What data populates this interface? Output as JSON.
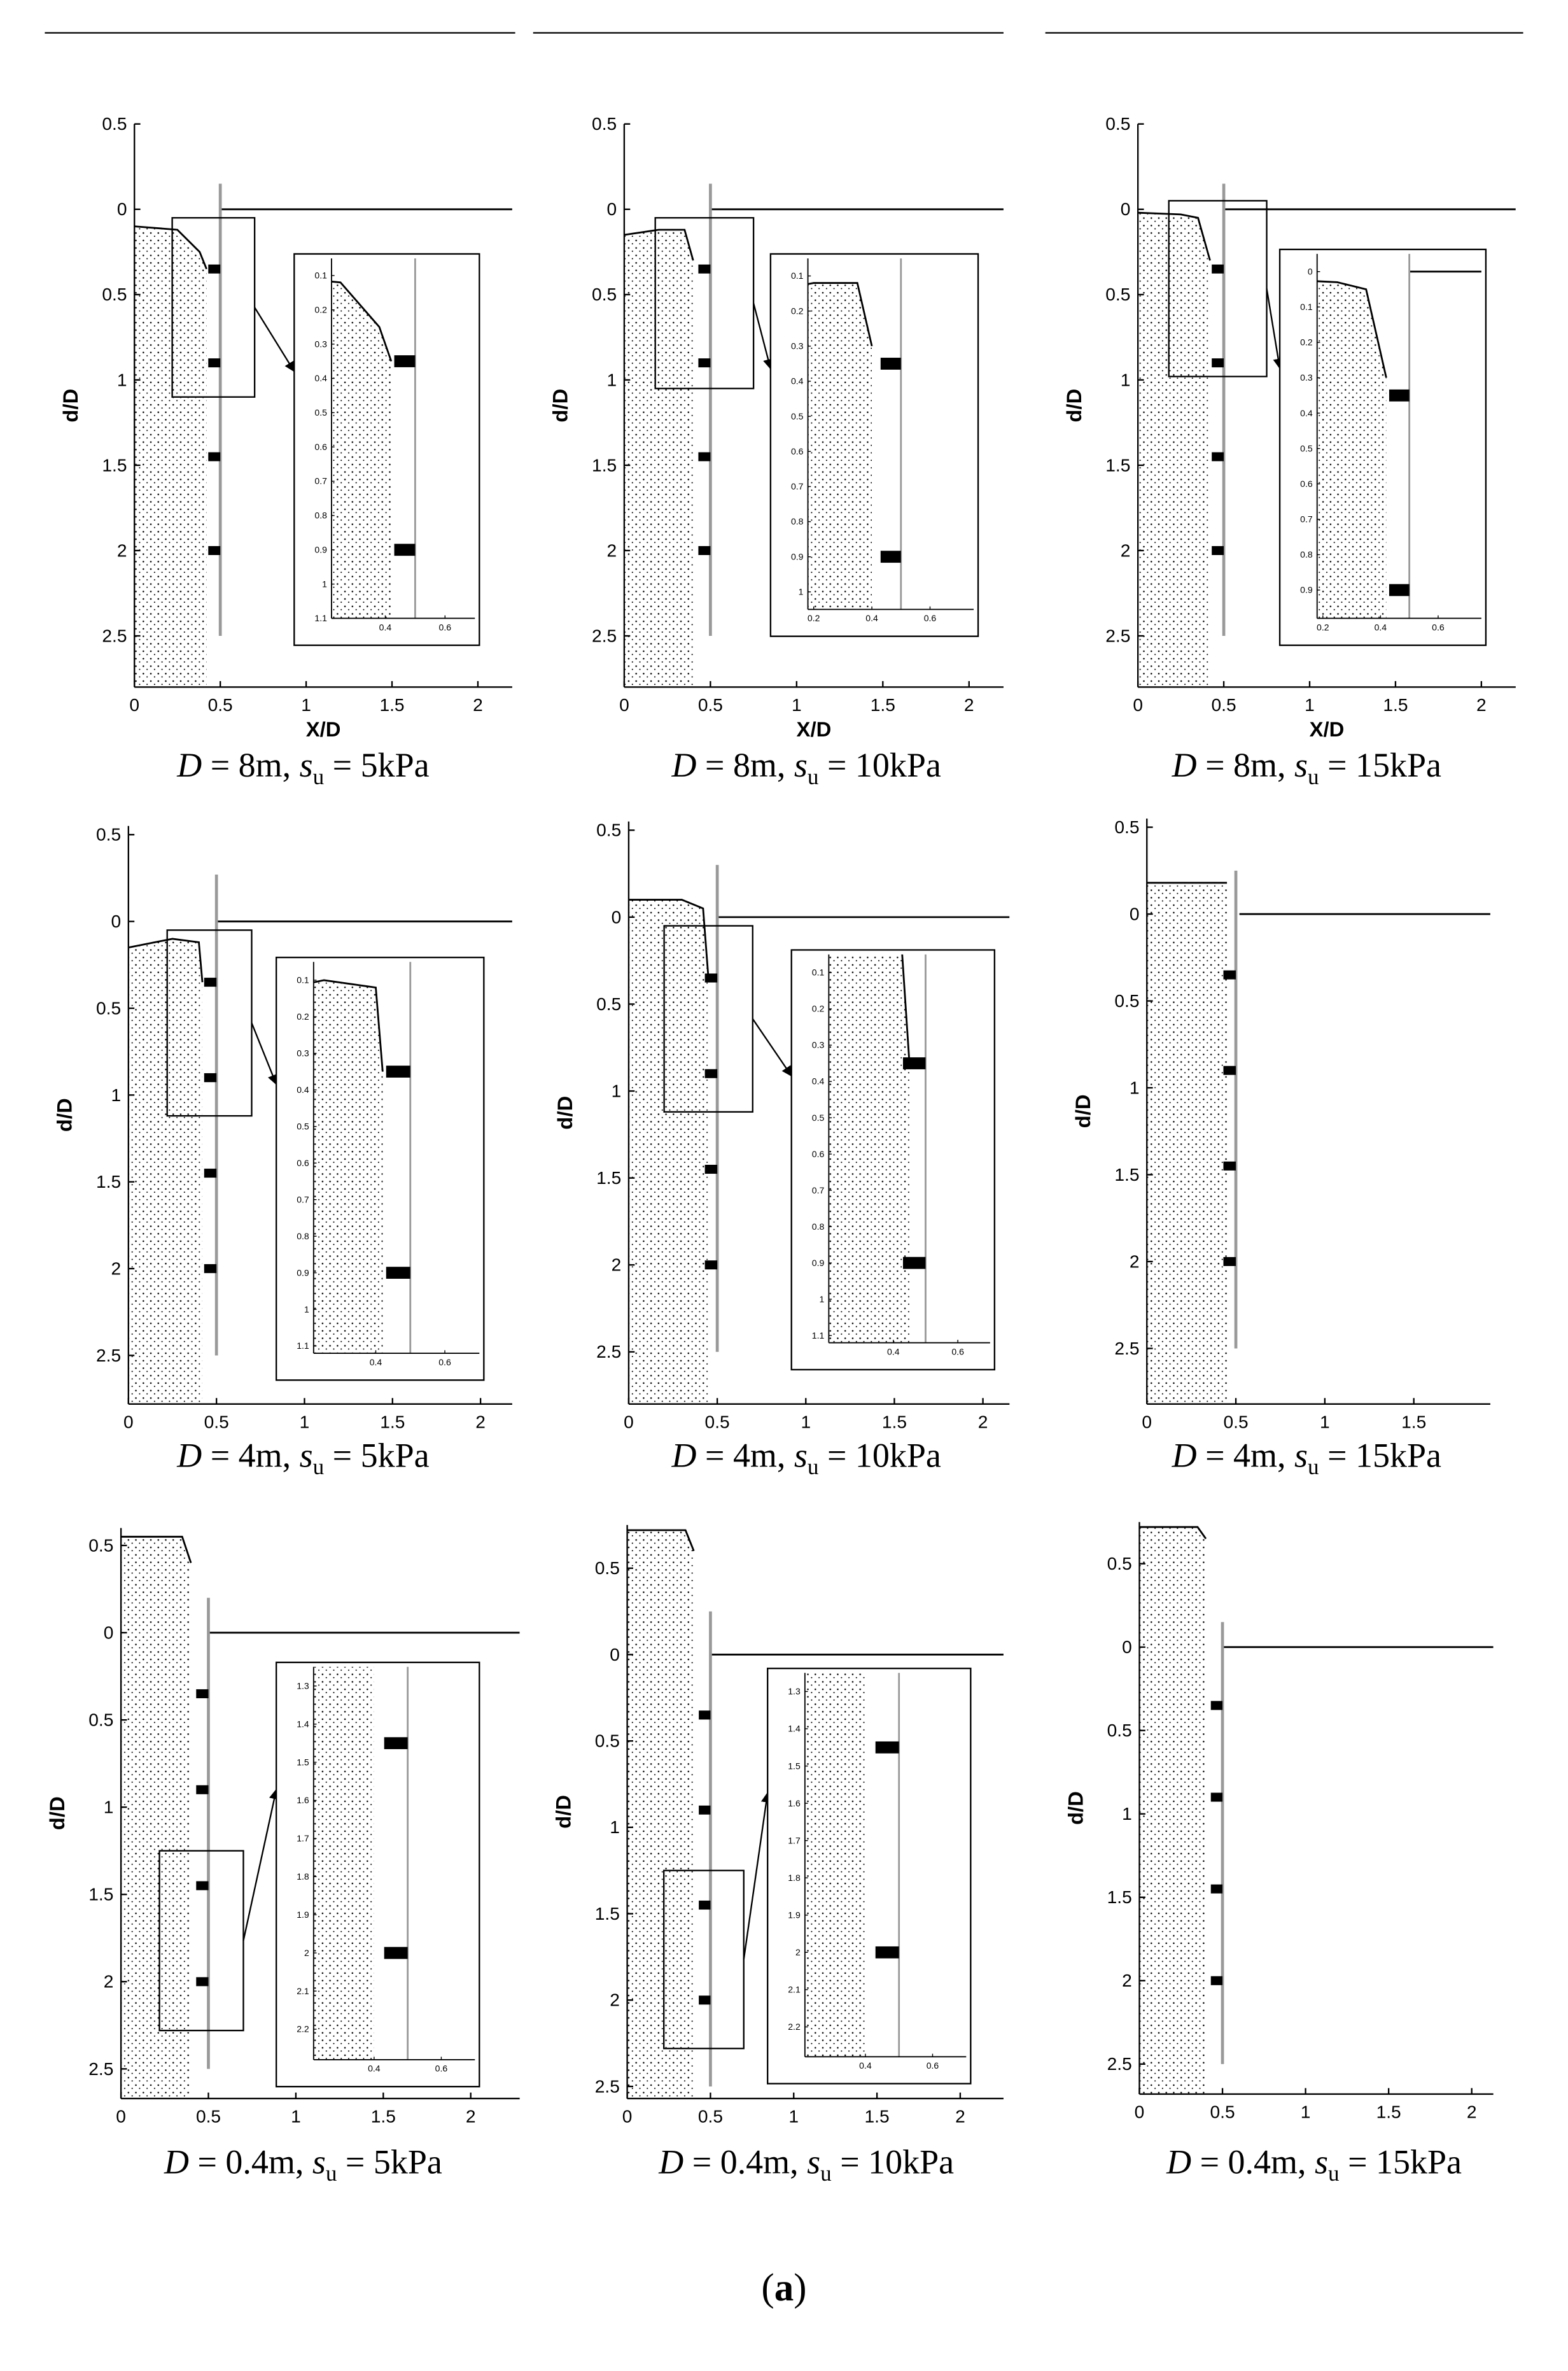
{
  "chart_data": [
    {
      "type": "line",
      "caption": [
        "D",
        " = 8m, ",
        "s",
        "u",
        " = 5kPa"
      ],
      "xlabel": "X/D",
      "ylabel": "d/D",
      "xlim": [
        0,
        2.2
      ],
      "ylim": [
        -0.5,
        2.8
      ],
      "xticks": [
        0,
        0.5,
        1,
        1.5,
        2
      ],
      "yticks": [
        {
          "value": -0.5,
          "label": "0.5"
        },
        0,
        0.5,
        1,
        1.5,
        2,
        2.5
      ],
      "series": [
        {
          "color": "#000000",
          "area": true,
          "x": [
            0,
            0.25,
            0.38,
            0.42
          ],
          "values": [
            0.1,
            0.12,
            0.25,
            0.35
          ]
        },
        {
          "color": "#000000",
          "x": [
            0.5,
            2.2
          ],
          "values": [
            0,
            0
          ]
        },
        {
          "color": "#999999",
          "x": [
            0.5,
            0.5
          ],
          "values": [
            -0.15,
            2.5
          ]
        }
      ],
      "anchors": {
        "color": "#000000",
        "values": [
          0.35,
          0.9,
          1.45,
          2.0
        ]
      },
      "inset": {
        "xlim": [
          0.22,
          0.7
        ],
        "ylim": [
          0.05,
          1.1
        ],
        "xticks": [
          0.4,
          0.6
        ],
        "yticks": [
          0.1,
          0.2,
          0.3,
          0.4,
          0.5,
          0.6,
          0.7,
          0.8,
          0.9,
          1,
          1.1
        ]
      }
    },
    {
      "type": "line",
      "caption": [
        "D",
        " = 8m, ",
        "s",
        "u",
        " = 10kPa"
      ],
      "xlabel": "X/D",
      "ylabel": "d/D",
      "xlim": [
        0,
        2.2
      ],
      "ylim": [
        -0.5,
        2.8
      ],
      "xticks": [
        0,
        0.5,
        1,
        1.5,
        2
      ],
      "yticks": [
        {
          "value": -0.5,
          "label": "0.5"
        },
        0,
        0.5,
        1,
        1.5,
        2,
        2.5
      ],
      "series": [
        {
          "color": "#000000",
          "area": true,
          "x": [
            0,
            0.2,
            0.35,
            0.4
          ],
          "values": [
            0.15,
            0.12,
            0.12,
            0.3
          ]
        },
        {
          "color": "#000000",
          "x": [
            0.5,
            2.2
          ],
          "values": [
            0,
            0
          ]
        },
        {
          "color": "#999999",
          "x": [
            0.5,
            0.5
          ],
          "values": [
            -0.15,
            2.5
          ]
        }
      ],
      "anchors": {
        "color": "#000000",
        "values": [
          0.35,
          0.9,
          1.45,
          2.0
        ]
      },
      "inset": {
        "xlim": [
          0.18,
          0.75
        ],
        "ylim": [
          0.05,
          1.05
        ],
        "xticks": [
          0.2,
          0.4,
          0.6
        ],
        "yticks": [
          0.1,
          0.2,
          0.3,
          0.4,
          0.5,
          0.6,
          0.7,
          0.8,
          0.9,
          1
        ]
      }
    },
    {
      "type": "line",
      "caption": [
        "D",
        " = 8m, ",
        "s",
        "u",
        " = 15kPa"
      ],
      "xlabel": "X/D",
      "ylabel": "d/D",
      "xlim": [
        0,
        2.2
      ],
      "ylim": [
        -0.5,
        2.8
      ],
      "xticks": [
        0,
        0.5,
        1,
        1.5,
        2
      ],
      "yticks": [
        {
          "value": -0.5,
          "label": "0.5"
        },
        0,
        0.5,
        1,
        1.5,
        2,
        2.5
      ],
      "series": [
        {
          "color": "#000000",
          "area": true,
          "x": [
            0,
            0.25,
            0.35,
            0.42
          ],
          "values": [
            0.02,
            0.03,
            0.05,
            0.3
          ]
        },
        {
          "color": "#000000",
          "x": [
            0.5,
            2.2
          ],
          "values": [
            0,
            0
          ]
        },
        {
          "color": "#999999",
          "x": [
            0.5,
            0.5
          ],
          "values": [
            -0.15,
            2.5
          ]
        }
      ],
      "anchors": {
        "color": "#000000",
        "values": [
          0.35,
          0.9,
          1.45,
          2.0
        ]
      },
      "inset": {
        "xlim": [
          0.18,
          0.75
        ],
        "ylim": [
          -0.05,
          0.98
        ],
        "xticks": [
          0.2,
          0.4,
          0.6
        ],
        "yticks": [
          0,
          0.1,
          0.2,
          0.3,
          0.4,
          0.5,
          0.6,
          0.7,
          0.8,
          0.9
        ]
      }
    },
    {
      "type": "line",
      "caption": [
        "D",
        " = 4m, ",
        "s",
        "u",
        " = 5kPa"
      ],
      "ylabel": "d/D",
      "xlim": [
        0,
        2.18
      ],
      "ylim": [
        -0.55,
        2.78
      ],
      "xticks": [
        0,
        0.5,
        1,
        1.5,
        2
      ],
      "yticks": [
        {
          "value": -0.5,
          "label": "0.5"
        },
        0,
        0.5,
        1,
        1.5,
        2,
        2.5
      ],
      "series": [
        {
          "color": "#000000",
          "area": true,
          "x": [
            0,
            0.25,
            0.4,
            0.42
          ],
          "values": [
            0.15,
            0.1,
            0.12,
            0.35
          ]
        },
        {
          "color": "#000000",
          "x": [
            0.5,
            2.18
          ],
          "values": [
            0,
            0
          ]
        },
        {
          "color": "#999999",
          "x": [
            0.5,
            0.5
          ],
          "values": [
            -0.27,
            2.5
          ]
        }
      ],
      "anchors": {
        "color": "#000000",
        "values": [
          0.35,
          0.9,
          1.45,
          2.0
        ]
      },
      "inset": {
        "xlim": [
          0.22,
          0.7
        ],
        "ylim": [
          0.05,
          1.12
        ],
        "xticks": [
          0.4,
          0.6
        ],
        "yticks": [
          0.1,
          0.2,
          0.3,
          0.4,
          0.5,
          0.6,
          0.7,
          0.8,
          0.9,
          1,
          1.1
        ]
      }
    },
    {
      "type": "line",
      "caption": [
        "D",
        " = 4m, ",
        "s",
        "u",
        " = 10kPa"
      ],
      "ylabel": "d/D",
      "xlim": [
        0,
        2.15
      ],
      "ylim": [
        -0.55,
        2.8
      ],
      "xticks": [
        0,
        0.5,
        1,
        1.5,
        2
      ],
      "yticks": [
        {
          "value": -0.5,
          "label": "0.5"
        },
        0,
        0.5,
        1,
        1.5,
        2,
        2.5
      ],
      "series": [
        {
          "color": "#000000",
          "area": true,
          "x": [
            0,
            0.3,
            0.42,
            0.45
          ],
          "values": [
            -0.1,
            -0.1,
            -0.05,
            0.35
          ]
        },
        {
          "color": "#000000",
          "x": [
            0.5,
            2.15
          ],
          "values": [
            0,
            0
          ]
        },
        {
          "color": "#999999",
          "x": [
            0.5,
            0.5
          ],
          "values": [
            -0.3,
            2.5
          ]
        }
      ],
      "anchors": {
        "color": "#000000",
        "values": [
          0.35,
          0.9,
          1.45,
          2.0
        ]
      },
      "inset": {
        "xlim": [
          0.2,
          0.7
        ],
        "ylim": [
          0.05,
          1.12
        ],
        "xticks": [
          0.4,
          0.6
        ],
        "yticks": [
          0.1,
          0.2,
          0.3,
          0.4,
          0.5,
          0.6,
          0.7,
          0.8,
          0.9,
          1,
          1.1
        ]
      }
    },
    {
      "type": "line",
      "caption": [
        "D",
        " = 4m, ",
        "s",
        "u",
        " = 15kPa"
      ],
      "ylabel": "d/D",
      "xlim": [
        0,
        1.93
      ],
      "ylim": [
        -0.55,
        2.82
      ],
      "xticks": [
        0,
        0.5,
        1,
        1.5
      ],
      "yticks": [
        {
          "value": -0.5,
          "label": "0.5"
        },
        0,
        0.5,
        1,
        1.5,
        2,
        2.5
      ],
      "series": [
        {
          "color": "#000000",
          "area": true,
          "x": [
            0,
            0.45
          ],
          "values": [
            -0.18,
            -0.18
          ]
        },
        {
          "color": "#000000",
          "x": [
            0.52,
            1.93
          ],
          "values": [
            0,
            0
          ]
        },
        {
          "color": "#999999",
          "x": [
            0.5,
            0.5
          ],
          "values": [
            -0.25,
            2.5
          ]
        }
      ],
      "anchors": {
        "color": "#000000",
        "values": [
          0.35,
          0.9,
          1.45,
          2.0
        ]
      }
    },
    {
      "type": "line",
      "caption": [
        "D",
        " = 0.4m, ",
        "s",
        "u",
        " = 5kPa"
      ],
      "ylabel": "d/D",
      "xlim": [
        0,
        2.28
      ],
      "ylim": [
        -0.6,
        2.67
      ],
      "xticks": [
        0,
        0.5,
        1,
        1.5,
        2
      ],
      "yticks": [
        {
          "value": -0.5,
          "label": "0.5"
        },
        0,
        0.5,
        1,
        1.5,
        2,
        2.5
      ],
      "series": [
        {
          "color": "#000000",
          "area": true,
          "x": [
            0,
            0.35,
            0.4
          ],
          "values": [
            -0.55,
            -0.55,
            -0.4
          ]
        },
        {
          "color": "#000000",
          "x": [
            0.5,
            2.28
          ],
          "values": [
            0,
            0
          ]
        },
        {
          "color": "#999999",
          "x": [
            0.5,
            0.5
          ],
          "values": [
            -0.2,
            2.5
          ]
        }
      ],
      "anchors": {
        "color": "#000000",
        "values": [
          0.35,
          0.9,
          1.45,
          2.0
        ]
      },
      "inset": {
        "xlim": [
          0.22,
          0.7
        ],
        "ylim": [
          1.25,
          2.28
        ],
        "xticks": [
          0.4,
          0.6
        ],
        "yticks": [
          1.3,
          1.4,
          1.5,
          1.6,
          1.7,
          1.8,
          1.9,
          2,
          2.1,
          2.2
        ]
      }
    },
    {
      "type": "line",
      "caption": [
        "D",
        " = 0.4m, ",
        "s",
        "u",
        " = 10kPa"
      ],
      "ylabel": "d/D",
      "xlim": [
        0,
        2.26
      ],
      "ylim": [
        -0.75,
        2.57
      ],
      "xticks": [
        0,
        0.5,
        1,
        1.5,
        2
      ],
      "yticks": [
        {
          "value": -0.5,
          "label": "0.5"
        },
        0,
        0.5,
        1,
        1.5,
        2,
        2.5
      ],
      "series": [
        {
          "color": "#000000",
          "area": true,
          "x": [
            0,
            0.35,
            0.4
          ],
          "values": [
            -0.72,
            -0.72,
            -0.6
          ]
        },
        {
          "color": "#000000",
          "x": [
            0.5,
            2.26
          ],
          "values": [
            0,
            0
          ]
        },
        {
          "color": "#999999",
          "x": [
            0.5,
            0.5
          ],
          "values": [
            -0.25,
            2.5
          ]
        }
      ],
      "anchors": {
        "color": "#000000",
        "values": [
          0.35,
          0.9,
          1.45,
          2.0
        ]
      },
      "inset": {
        "xlim": [
          0.22,
          0.7
        ],
        "ylim": [
          1.25,
          2.28
        ],
        "xticks": [
          0.4,
          0.6
        ],
        "yticks": [
          1.3,
          1.4,
          1.5,
          1.6,
          1.7,
          1.8,
          1.9,
          2,
          2.1,
          2.2
        ]
      }
    },
    {
      "type": "line",
      "caption": [
        "D",
        " = 0.4m, ",
        "s",
        "u",
        " = 15kPa"
      ],
      "ylabel": "d/D",
      "xlim": [
        0,
        2.13
      ],
      "ylim": [
        -0.75,
        2.68
      ],
      "xticks": [
        0,
        0.5,
        1,
        1.5,
        2
      ],
      "yticks": [
        {
          "value": -0.5,
          "label": "0.5"
        },
        0,
        0.5,
        1,
        1.5,
        2,
        2.5
      ],
      "series": [
        {
          "color": "#000000",
          "area": true,
          "x": [
            0,
            0.35,
            0.4
          ],
          "values": [
            -0.72,
            -0.72,
            -0.65
          ]
        },
        {
          "color": "#000000",
          "x": [
            0.5,
            2.13
          ],
          "values": [
            0,
            0
          ]
        },
        {
          "color": "#999999",
          "x": [
            0.5,
            0.5
          ],
          "values": [
            -0.15,
            2.5
          ]
        }
      ],
      "anchors": {
        "color": "#000000",
        "values": [
          0.35,
          0.9,
          1.45,
          2.0
        ]
      }
    }
  ],
  "figure_label": [
    "(",
    "a",
    ")"
  ]
}
